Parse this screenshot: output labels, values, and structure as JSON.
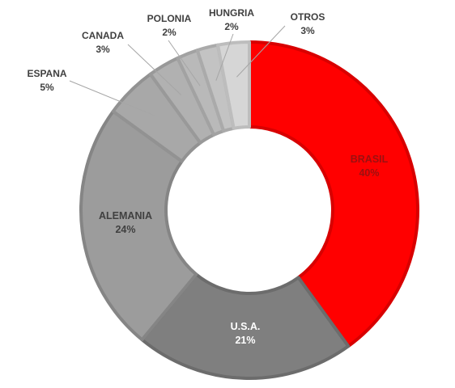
{
  "chart_data": {
    "type": "pie",
    "title": "",
    "slices": [
      {
        "label": "BRASIL",
        "value": 40,
        "value_label": "40%",
        "color": "#ff0000",
        "edge": "#d80000",
        "label_color": "#9c1010"
      },
      {
        "label": "U.S.A.",
        "value": 21,
        "value_label": "21%",
        "color": "#7f7f7f",
        "edge": "#6c6c6c",
        "label_color": "#ffffff"
      },
      {
        "label": "ALEMANIA",
        "value": 24,
        "value_label": "24%",
        "color": "#9c9c9c",
        "edge": "#858585",
        "label_color": "#404040"
      },
      {
        "label": "ESPANA",
        "value": 5,
        "value_label": "5%",
        "color": "#a8a8a8",
        "edge": "#929292",
        "label_color": "#404040"
      },
      {
        "label": "CANADA",
        "value": 3,
        "value_label": "3%",
        "color": "#b1b1b1",
        "edge": "#999999",
        "label_color": "#404040"
      },
      {
        "label": "POLONIA",
        "value": 2,
        "value_label": "2%",
        "color": "#b9b9b9",
        "edge": "#a2a2a2",
        "label_color": "#404040"
      },
      {
        "label": "HUNGRIA",
        "value": 2,
        "value_label": "2%",
        "color": "#c3c3c3",
        "edge": "#aaaaaa",
        "label_color": "#404040"
      },
      {
        "label": "OTROS",
        "value": 3,
        "value_label": "3%",
        "color": "#d6d6d6",
        "edge": "#bdbdbd",
        "label_color": "#404040"
      }
    ]
  }
}
